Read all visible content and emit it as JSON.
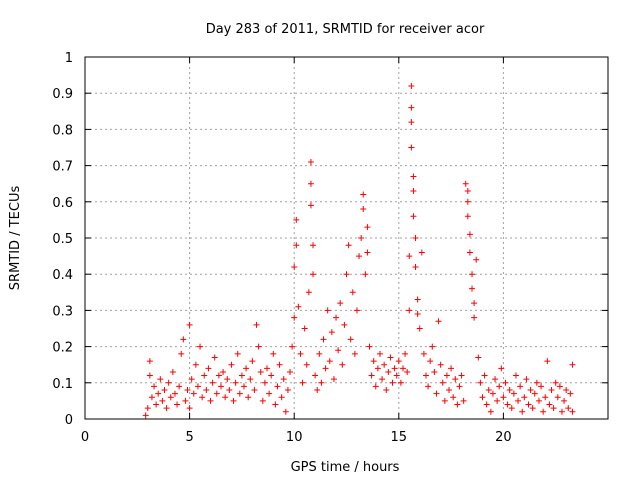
{
  "chart_data": {
    "type": "scatter",
    "title": "Day 283 of 2011, SRMTID for receiver acor",
    "xlabel": "GPS time / hours",
    "ylabel": "SRMTID / TECUs",
    "xlim": [
      0,
      25
    ],
    "ylim": [
      0,
      1
    ],
    "x_ticks": [
      0,
      5,
      10,
      15,
      20
    ],
    "x_tick_labels": [
      "0",
      "5",
      "10",
      "15",
      "20"
    ],
    "y_ticks": [
      0,
      0.1,
      0.2,
      0.3,
      0.4,
      0.5,
      0.6,
      0.7,
      0.8,
      0.9,
      1
    ],
    "y_tick_labels": [
      "0",
      "0.1",
      "0.2",
      "0.3",
      "0.4",
      "0.5",
      "0.6",
      "0.7",
      "0.8",
      "0.9",
      "1"
    ],
    "grid": true,
    "marker": "plus",
    "series": [
      {
        "name": "SRMTID",
        "color": "#ff0000",
        "points": [
          [
            2.9,
            0.01
          ],
          [
            3.0,
            0.03
          ],
          [
            3.1,
            0.12
          ],
          [
            3.1,
            0.16
          ],
          [
            3.2,
            0.06
          ],
          [
            3.3,
            0.09
          ],
          [
            3.4,
            0.04
          ],
          [
            3.5,
            0.07
          ],
          [
            3.6,
            0.11
          ],
          [
            3.7,
            0.05
          ],
          [
            3.8,
            0.08
          ],
          [
            3.9,
            0.03
          ],
          [
            4.0,
            0.1
          ],
          [
            4.1,
            0.06
          ],
          [
            4.2,
            0.13
          ],
          [
            4.3,
            0.07
          ],
          [
            4.4,
            0.04
          ],
          [
            4.5,
            0.09
          ],
          [
            4.6,
            0.18
          ],
          [
            4.7,
            0.22
          ],
          [
            4.8,
            0.05
          ],
          [
            4.9,
            0.08
          ],
          [
            5.0,
            0.26
          ],
          [
            5.0,
            0.03
          ],
          [
            5.1,
            0.11
          ],
          [
            5.2,
            0.07
          ],
          [
            5.3,
            0.15
          ],
          [
            5.4,
            0.09
          ],
          [
            5.5,
            0.2
          ],
          [
            5.6,
            0.06
          ],
          [
            5.7,
            0.12
          ],
          [
            5.8,
            0.08
          ],
          [
            5.9,
            0.14
          ],
          [
            6.0,
            0.05
          ],
          [
            6.1,
            0.1
          ],
          [
            6.2,
            0.17
          ],
          [
            6.3,
            0.07
          ],
          [
            6.4,
            0.12
          ],
          [
            6.5,
            0.09
          ],
          [
            6.6,
            0.13
          ],
          [
            6.7,
            0.06
          ],
          [
            6.8,
            0.11
          ],
          [
            6.9,
            0.08
          ],
          [
            7.0,
            0.15
          ],
          [
            7.1,
            0.05
          ],
          [
            7.2,
            0.1
          ],
          [
            7.3,
            0.18
          ],
          [
            7.4,
            0.07
          ],
          [
            7.5,
            0.12
          ],
          [
            7.6,
            0.09
          ],
          [
            7.7,
            0.14
          ],
          [
            7.8,
            0.06
          ],
          [
            7.9,
            0.11
          ],
          [
            8.0,
            0.16
          ],
          [
            8.1,
            0.08
          ],
          [
            8.2,
            0.26
          ],
          [
            8.3,
            0.2
          ],
          [
            8.4,
            0.13
          ],
          [
            8.5,
            0.05
          ],
          [
            8.6,
            0.1
          ],
          [
            8.7,
            0.14
          ],
          [
            8.8,
            0.07
          ],
          [
            8.9,
            0.12
          ],
          [
            9.0,
            0.18
          ],
          [
            9.1,
            0.04
          ],
          [
            9.2,
            0.09
          ],
          [
            9.3,
            0.15
          ],
          [
            9.4,
            0.06
          ],
          [
            9.5,
            0.11
          ],
          [
            9.6,
            0.02
          ],
          [
            9.7,
            0.08
          ],
          [
            9.8,
            0.13
          ],
          [
            9.9,
            0.2
          ],
          [
            10.0,
            0.28
          ],
          [
            10.0,
            0.42
          ],
          [
            10.1,
            0.48
          ],
          [
            10.1,
            0.55
          ],
          [
            10.2,
            0.31
          ],
          [
            10.3,
            0.18
          ],
          [
            10.4,
            0.1
          ],
          [
            10.5,
            0.25
          ],
          [
            10.6,
            0.15
          ],
          [
            10.7,
            0.35
          ],
          [
            10.8,
            0.71
          ],
          [
            10.8,
            0.65
          ],
          [
            10.8,
            0.59
          ],
          [
            10.9,
            0.48
          ],
          [
            10.9,
            0.4
          ],
          [
            11.0,
            0.12
          ],
          [
            11.1,
            0.08
          ],
          [
            11.2,
            0.18
          ],
          [
            11.3,
            0.1
          ],
          [
            11.4,
            0.22
          ],
          [
            11.5,
            0.14
          ],
          [
            11.6,
            0.3
          ],
          [
            11.7,
            0.16
          ],
          [
            11.8,
            0.24
          ],
          [
            11.9,
            0.11
          ],
          [
            12.0,
            0.28
          ],
          [
            12.1,
            0.19
          ],
          [
            12.2,
            0.32
          ],
          [
            12.3,
            0.15
          ],
          [
            12.4,
            0.26
          ],
          [
            12.5,
            0.4
          ],
          [
            12.6,
            0.48
          ],
          [
            12.7,
            0.22
          ],
          [
            12.8,
            0.35
          ],
          [
            12.9,
            0.18
          ],
          [
            13.0,
            0.3
          ],
          [
            13.1,
            0.45
          ],
          [
            13.2,
            0.5
          ],
          [
            13.3,
            0.62
          ],
          [
            13.3,
            0.58
          ],
          [
            13.4,
            0.4
          ],
          [
            13.5,
            0.53
          ],
          [
            13.5,
            0.46
          ],
          [
            13.6,
            0.2
          ],
          [
            13.7,
            0.12
          ],
          [
            13.8,
            0.16
          ],
          [
            13.9,
            0.09
          ],
          [
            14.0,
            0.14
          ],
          [
            14.1,
            0.18
          ],
          [
            14.2,
            0.11
          ],
          [
            14.3,
            0.15
          ],
          [
            14.4,
            0.08
          ],
          [
            14.5,
            0.13
          ],
          [
            14.6,
            0.17
          ],
          [
            14.7,
            0.1
          ],
          [
            14.8,
            0.14
          ],
          [
            14.9,
            0.12
          ],
          [
            15.0,
            0.16
          ],
          [
            15.1,
            0.1
          ],
          [
            15.2,
            0.14
          ],
          [
            15.3,
            0.18
          ],
          [
            15.4,
            0.13
          ],
          [
            15.5,
            0.3
          ],
          [
            15.5,
            0.45
          ],
          [
            15.6,
            0.92
          ],
          [
            15.6,
            0.86
          ],
          [
            15.6,
            0.82
          ],
          [
            15.6,
            0.75
          ],
          [
            15.7,
            0.67
          ],
          [
            15.7,
            0.63
          ],
          [
            15.7,
            0.56
          ],
          [
            15.8,
            0.5
          ],
          [
            15.8,
            0.42
          ],
          [
            15.9,
            0.33
          ],
          [
            15.9,
            0.29
          ],
          [
            16.0,
            0.25
          ],
          [
            16.1,
            0.46
          ],
          [
            16.2,
            0.18
          ],
          [
            16.3,
            0.12
          ],
          [
            16.4,
            0.09
          ],
          [
            16.5,
            0.16
          ],
          [
            16.6,
            0.2
          ],
          [
            16.7,
            0.13
          ],
          [
            16.8,
            0.07
          ],
          [
            16.9,
            0.27
          ],
          [
            17.0,
            0.15
          ],
          [
            17.1,
            0.1
          ],
          [
            17.2,
            0.05
          ],
          [
            17.3,
            0.12
          ],
          [
            17.4,
            0.08
          ],
          [
            17.5,
            0.14
          ],
          [
            17.6,
            0.06
          ],
          [
            17.7,
            0.11
          ],
          [
            17.8,
            0.04
          ],
          [
            17.9,
            0.09
          ],
          [
            18.0,
            0.12
          ],
          [
            18.1,
            0.05
          ],
          [
            18.2,
            0.65
          ],
          [
            18.3,
            0.63
          ],
          [
            18.3,
            0.6
          ],
          [
            18.3,
            0.56
          ],
          [
            18.4,
            0.51
          ],
          [
            18.4,
            0.46
          ],
          [
            18.5,
            0.4
          ],
          [
            18.5,
            0.36
          ],
          [
            18.6,
            0.32
          ],
          [
            18.6,
            0.28
          ],
          [
            18.7,
            0.44
          ],
          [
            18.8,
            0.17
          ],
          [
            18.9,
            0.1
          ],
          [
            19.0,
            0.06
          ],
          [
            19.1,
            0.12
          ],
          [
            19.2,
            0.04
          ],
          [
            19.3,
            0.08
          ],
          [
            19.4,
            0.02
          ],
          [
            19.5,
            0.07
          ],
          [
            19.6,
            0.11
          ],
          [
            19.7,
            0.05
          ],
          [
            19.8,
            0.09
          ],
          [
            19.9,
            0.14
          ],
          [
            20.0,
            0.06
          ],
          [
            20.1,
            0.1
          ],
          [
            20.2,
            0.04
          ],
          [
            20.3,
            0.08
          ],
          [
            20.4,
            0.03
          ],
          [
            20.5,
            0.07
          ],
          [
            20.6,
            0.12
          ],
          [
            20.7,
            0.05
          ],
          [
            20.8,
            0.09
          ],
          [
            20.9,
            0.02
          ],
          [
            21.0,
            0.06
          ],
          [
            21.1,
            0.11
          ],
          [
            21.2,
            0.04
          ],
          [
            21.3,
            0.08
          ],
          [
            21.4,
            0.03
          ],
          [
            21.5,
            0.07
          ],
          [
            21.6,
            0.1
          ],
          [
            21.7,
            0.05
          ],
          [
            21.8,
            0.09
          ],
          [
            21.9,
            0.02
          ],
          [
            22.0,
            0.06
          ],
          [
            22.1,
            0.16
          ],
          [
            22.2,
            0.04
          ],
          [
            22.3,
            0.08
          ],
          [
            22.4,
            0.03
          ],
          [
            22.5,
            0.1
          ],
          [
            22.6,
            0.06
          ],
          [
            22.7,
            0.09
          ],
          [
            22.8,
            0.02
          ],
          [
            22.9,
            0.05
          ],
          [
            23.0,
            0.08
          ],
          [
            23.1,
            0.03
          ],
          [
            23.2,
            0.07
          ],
          [
            23.3,
            0.15
          ],
          [
            23.3,
            0.02
          ]
        ]
      }
    ]
  }
}
